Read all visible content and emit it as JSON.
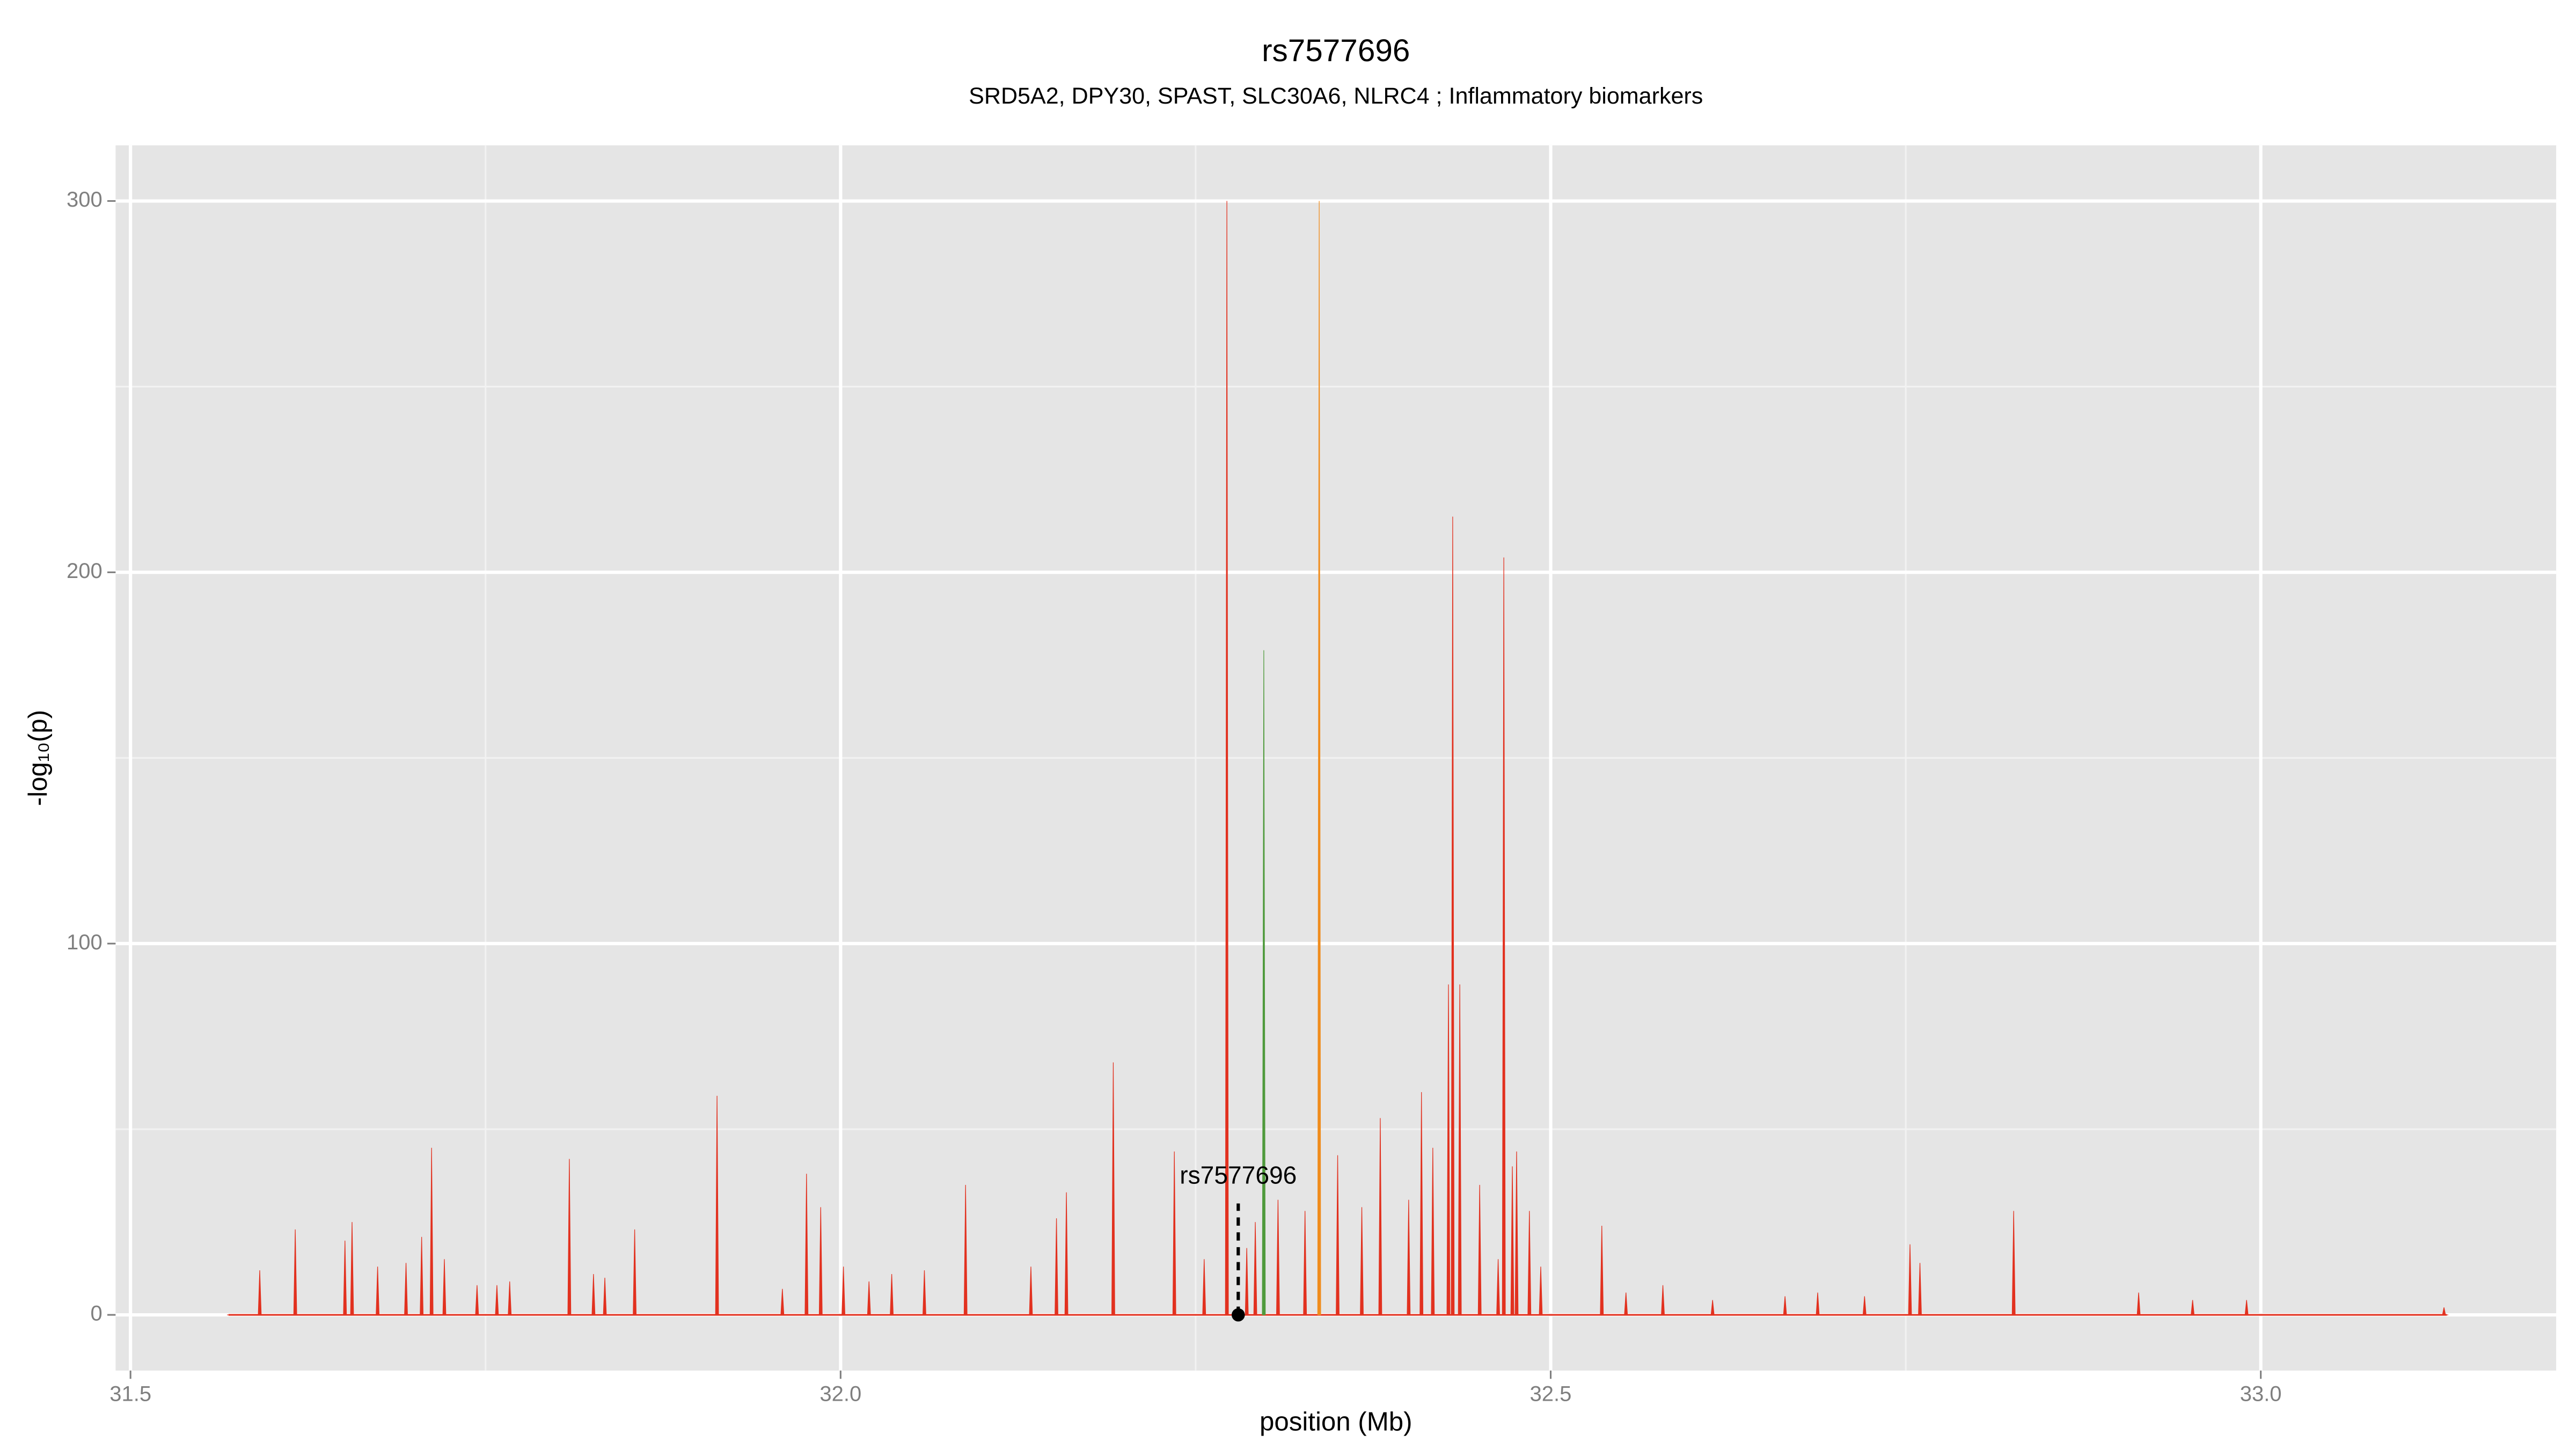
{
  "chart_data": {
    "type": "spike",
    "title": "rs7577696",
    "subtitle": "SRD5A2, DPY30, SPAST, SLC30A6, NLRC4 ; Inflammatory biomarkers",
    "xlabel": "position (Mb)",
    "ylabel": "-log₁₀(p)",
    "xlim": [
      31.4895,
      33.208
    ],
    "ylim": [
      -15,
      315
    ],
    "xticks": [
      31.5,
      {
        "value": 32,
        "label": "32.0"
      },
      32.5,
      {
        "value": 33,
        "label": "33.0"
      }
    ],
    "yticks": [
      0,
      100,
      200,
      300
    ],
    "xminorticks": [
      31.75,
      32.25,
      32.75
    ],
    "yminorticks": [
      50,
      150,
      250
    ],
    "grid": true,
    "series": [
      {
        "color": "#e2311f",
        "x": [
          31.569,
          31.591,
          31.616,
          31.651,
          31.656,
          31.674,
          31.694,
          31.705,
          31.712,
          31.721,
          31.744,
          31.758,
          31.767,
          31.809,
          31.826,
          31.834,
          31.855,
          31.913,
          31.959,
          31.976,
          31.986,
          32.002,
          32.02,
          32.036,
          32.059,
          32.088,
          32.134,
          32.152,
          32.159,
          32.192,
          32.235,
          32.256,
          32.272,
          32.286,
          32.292,
          32.308,
          32.327,
          32.35,
          32.367,
          32.38,
          32.4,
          32.409,
          32.417,
          32.428,
          32.431,
          32.436,
          32.45,
          32.463,
          32.467,
          32.473,
          32.476,
          32.485,
          32.493,
          32.536,
          32.553,
          32.579,
          32.614,
          32.665,
          32.688,
          32.721,
          32.753,
          32.76,
          32.826,
          32.914,
          32.952,
          32.99,
          33.129,
          33.131
        ],
        "values": [
          0,
          12,
          23,
          20,
          25,
          13,
          14,
          21,
          45,
          15,
          8,
          8,
          9,
          42,
          11,
          10,
          23,
          59,
          7,
          38,
          29,
          13,
          9,
          11,
          12,
          35,
          13,
          26,
          33,
          68,
          44,
          15,
          300,
          18,
          25,
          31,
          28,
          43,
          29,
          53,
          31,
          60,
          45,
          89,
          215,
          89,
          35,
          15,
          204,
          40,
          44,
          28,
          13,
          24,
          6,
          8,
          4,
          5,
          6,
          5,
          19,
          14,
          28,
          6,
          4,
          4,
          2,
          0
        ]
      },
      {
        "color": "#4f9a3c",
        "x": [
          32.298
        ],
        "values": [
          179
        ]
      },
      {
        "color": "#f08c1c",
        "x": [
          32.337
        ],
        "values": [
          300
        ]
      }
    ],
    "annotation": {
      "text": "rs7577696",
      "x": 32.28,
      "y": 0,
      "line_top": 30
    }
  }
}
